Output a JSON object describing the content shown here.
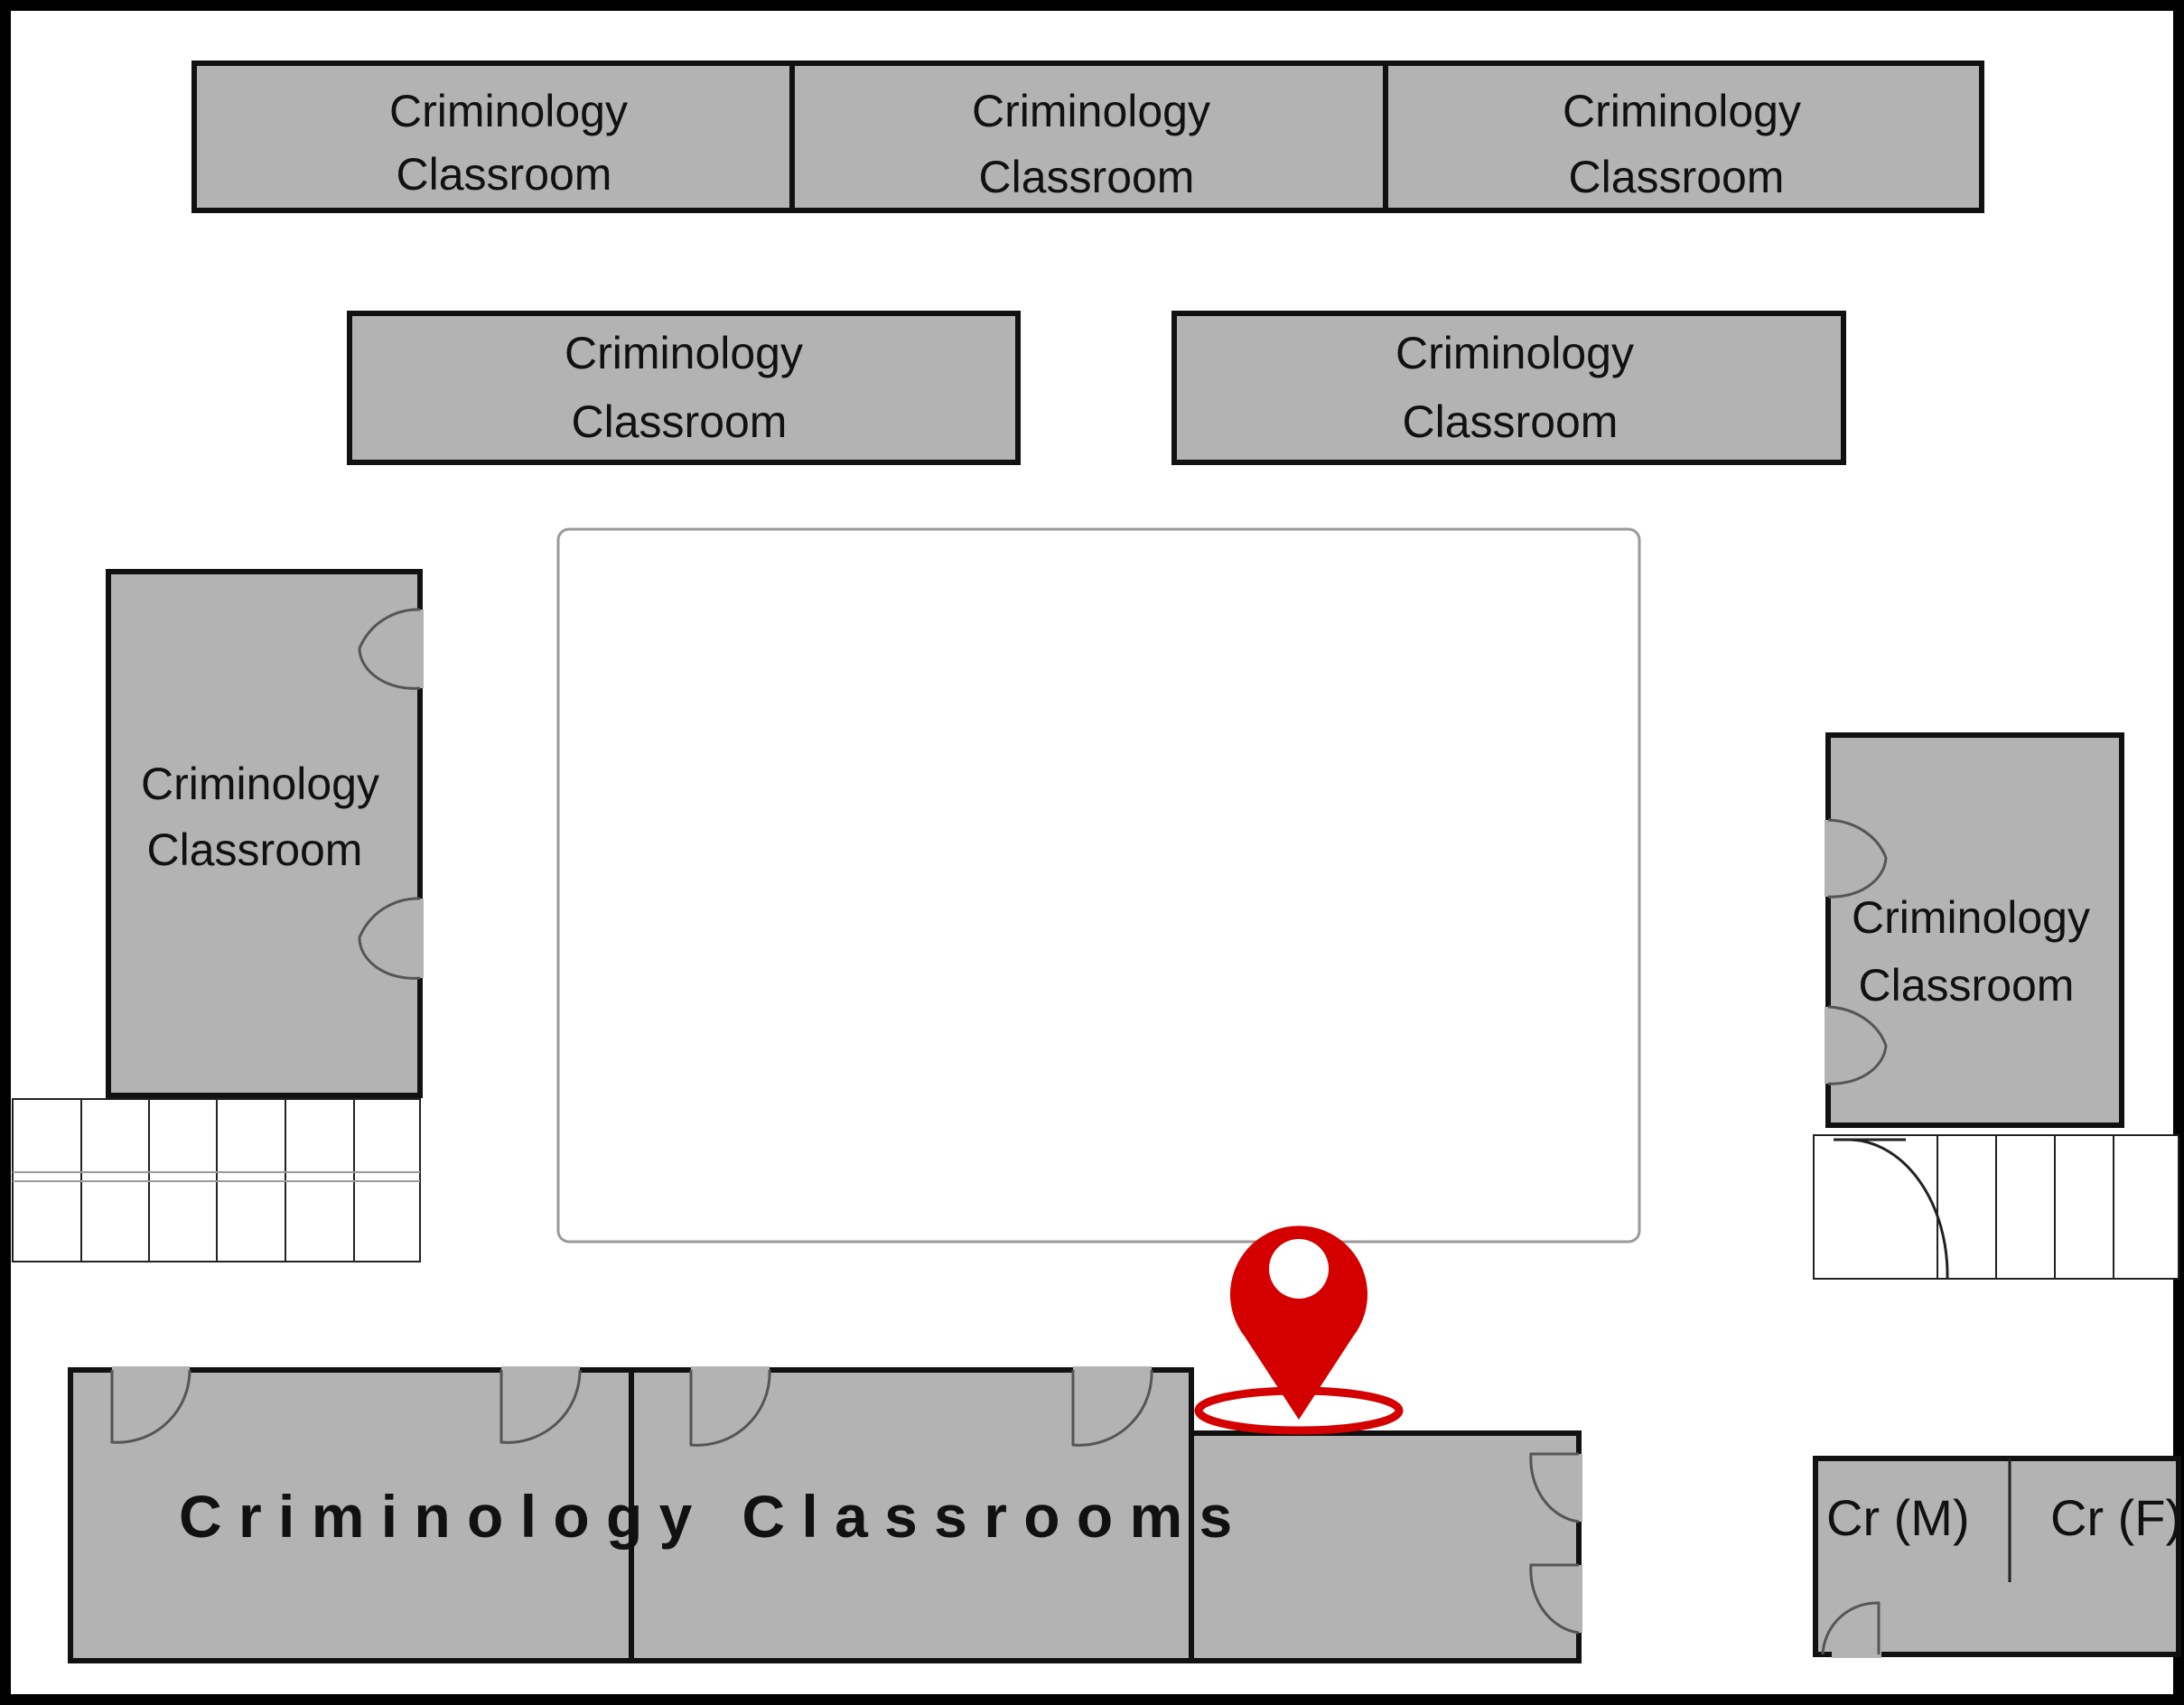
{
  "map": {
    "rooms": [
      {
        "id": "top-1",
        "line1": "Criminology",
        "line2": "Classroom"
      },
      {
        "id": "top-2",
        "line1": "Criminology",
        "line2": "Classroom"
      },
      {
        "id": "top-3",
        "line1": "Criminology",
        "line2": "Classroom"
      },
      {
        "id": "mid-1",
        "line1": "Criminology",
        "line2": "Classroom"
      },
      {
        "id": "mid-2",
        "line1": "Criminology",
        "line2": "Classroom"
      },
      {
        "id": "left",
        "line1": "Criminology",
        "line2": "Classroom"
      },
      {
        "id": "right",
        "line1": "Criminology",
        "line2": "Classroom"
      }
    ],
    "bottom_label": "C r i m i n o l o g y   C l a s s r o o m s",
    "restrooms": {
      "male": "Cr (M)",
      "female": "Cr (F)"
    },
    "marker": {
      "icon": "location-pin-icon",
      "color": "#d40000"
    }
  }
}
